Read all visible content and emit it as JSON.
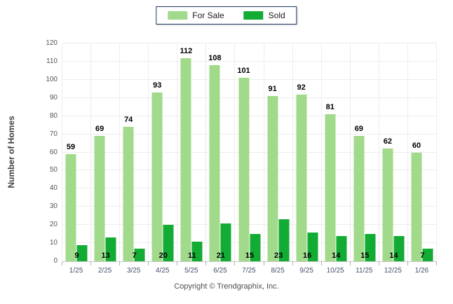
{
  "chart_data": {
    "type": "bar",
    "title": "",
    "categories": [
      "1/25",
      "2/25",
      "3/25",
      "4/25",
      "5/25",
      "6/25",
      "7/25",
      "8/25",
      "9/25",
      "10/25",
      "11/25",
      "12/25",
      "1/26"
    ],
    "series": [
      {
        "name": "For Sale",
        "color": "#a1da8b",
        "values": [
          59,
          69,
          74,
          93,
          112,
          108,
          101,
          91,
          92,
          81,
          69,
          62,
          60
        ]
      },
      {
        "name": "Sold",
        "color": "#12ab33",
        "values": [
          9,
          13,
          7,
          20,
          11,
          21,
          15,
          23,
          16,
          14,
          15,
          14,
          7
        ]
      }
    ],
    "xlabel": "",
    "ylabel": "Number of Homes",
    "ylim": [
      0,
      120
    ],
    "ytick_step": 10,
    "grid": true,
    "legend_position": "top-center",
    "data_labels": true
  },
  "legend": {
    "for_sale_label": "For Sale",
    "sold_label": "Sold",
    "border_color": "#1f3864"
  },
  "footer": {
    "copyright": "Copyright © Trendgraphix, Inc."
  }
}
